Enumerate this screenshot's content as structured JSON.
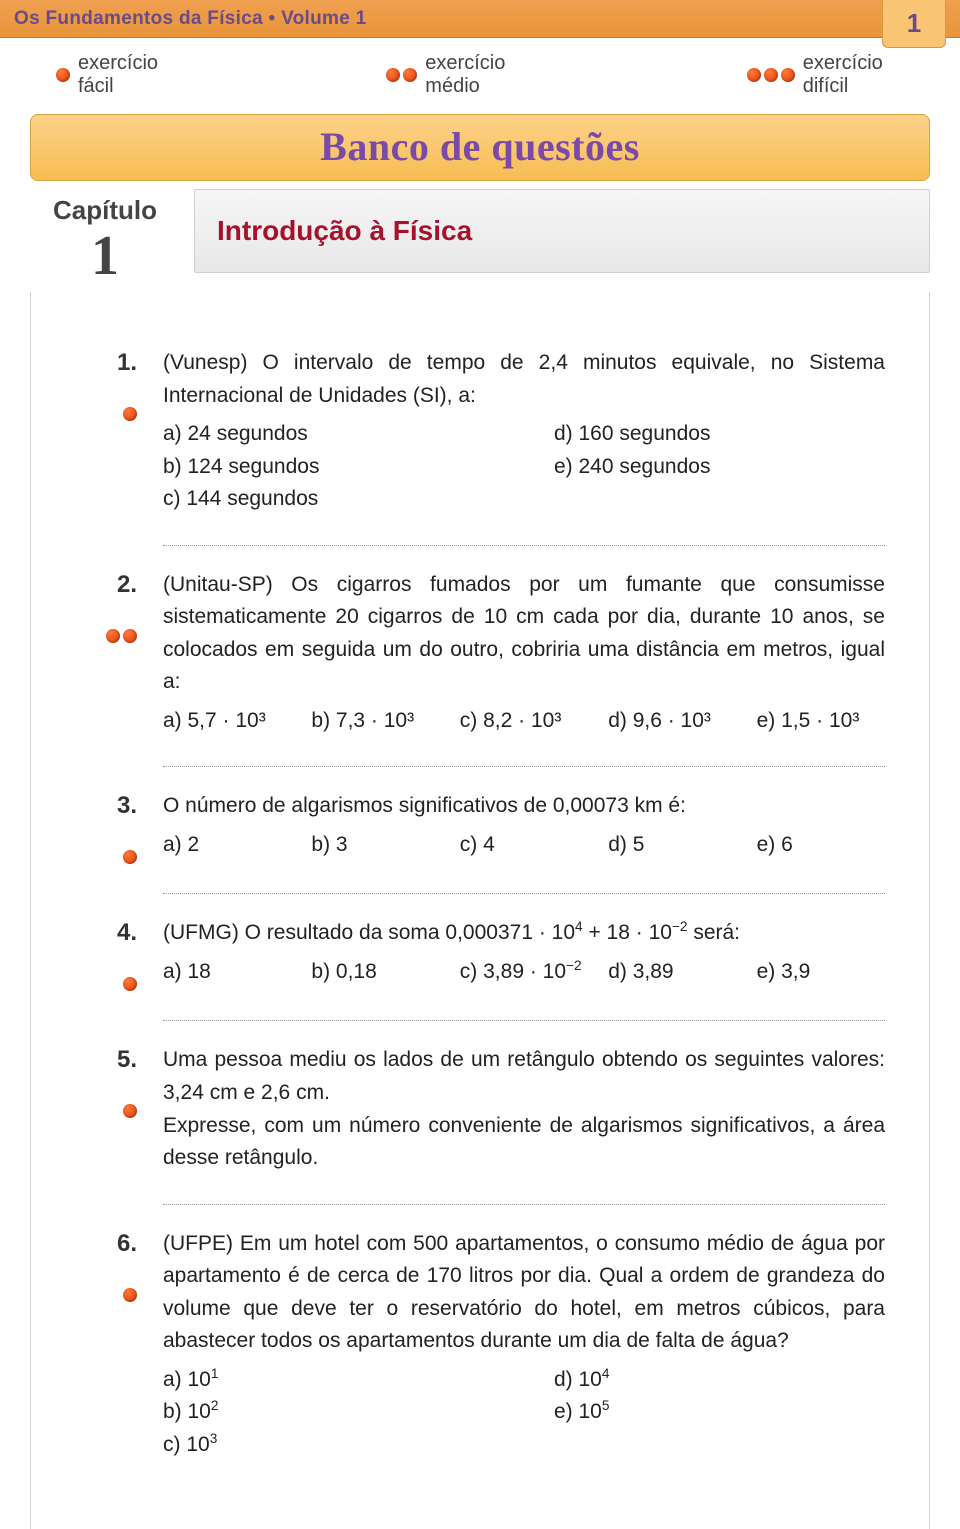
{
  "colors": {
    "header_bg_start": "#f0a050",
    "header_bg_end": "#e8943a",
    "banner_bg_start": "#fcd28a",
    "banner_bg_end": "#f8bd52",
    "accent_purple": "#6b4a8a",
    "title_red": "#a7112c",
    "dot_orange": "#e84a10",
    "panel_border": "#cfcfcf"
  },
  "header": {
    "title": "Os Fundamentos da Física • Volume 1",
    "page_number": "1"
  },
  "difficulty": {
    "easy": "exercício fácil",
    "medium": "exercício médio",
    "hard": "exercício difícil"
  },
  "banner": "Banco de questões",
  "chapter": {
    "label": "Capítulo",
    "number": "1",
    "title": "Introdução à Física"
  },
  "questions": [
    {
      "num": "1.",
      "difficulty_dots": 1,
      "text": "(Vunesp) O intervalo de tempo de 2,4 minutos equivale, no Sistema Internacional de Unidades (SI), a:",
      "options_layout": "2col",
      "options": [
        "a) 24 segundos",
        "b) 124 segundos",
        "c) 144 segundos",
        "d) 160 segundos",
        "e) 240 segundos"
      ]
    },
    {
      "num": "2.",
      "difficulty_dots": 2,
      "text": "(Unitau-SP) Os cigarros fumados por um fumante que consumisse sistematicamente 20 cigarros de 10 cm cada por dia, durante 10 anos, se colocados em seguida um do outro, cobriria uma distância em metros, igual a:",
      "options_layout": "5col",
      "options_html": [
        "a) 5,7 · 10³",
        "b) 7,3 · 10³",
        "c) 8,2 · 10³",
        "d) 9,6 · 10³",
        "e) 1,5 · 10³"
      ]
    },
    {
      "num": "3.",
      "difficulty_dots": 1,
      "text": "O número de algarismos significativos de 0,00073 km é:",
      "options_layout": "5col",
      "options": [
        "a) 2",
        "b) 3",
        "c) 4",
        "d) 5",
        "e) 6"
      ]
    },
    {
      "num": "4.",
      "difficulty_dots": 1,
      "text_html": "(UFMG) O resultado da soma 0,000371 · 10<sup>4</sup> + 18 · 10<sup>−2</sup> será:",
      "options_layout": "5col",
      "options_html": [
        "a) 18",
        "b) 0,18",
        "c) 3,89 · 10<sup>−2</sup>",
        "d) 3,89",
        "e) 3,9"
      ]
    },
    {
      "num": "5.",
      "difficulty_dots": 1,
      "text": "Uma pessoa mediu os lados de um retângulo obtendo os seguintes valores: 3,24 cm e 2,6 cm.\nExpresse, com um número conveniente de algarismos significativos, a área desse retângulo."
    },
    {
      "num": "6.",
      "difficulty_dots": 1,
      "text": "(UFPE) Em um hotel com 500 apartamentos, o consumo médio de água por apartamento é de cerca de 170 litros por dia. Qual a ordem de grandeza do volume que deve ter o reservatório do hotel, em metros cúbicos, para abastecer todos os apartamentos durante um dia de falta de água?",
      "options_layout": "2col",
      "options_html": [
        "a) 10<sup>1</sup>",
        "b) 10<sup>2</sup>",
        "c) 10<sup>3</sup>",
        "d) 10<sup>4</sup>",
        "e) 10<sup>5</sup>"
      ]
    }
  ]
}
